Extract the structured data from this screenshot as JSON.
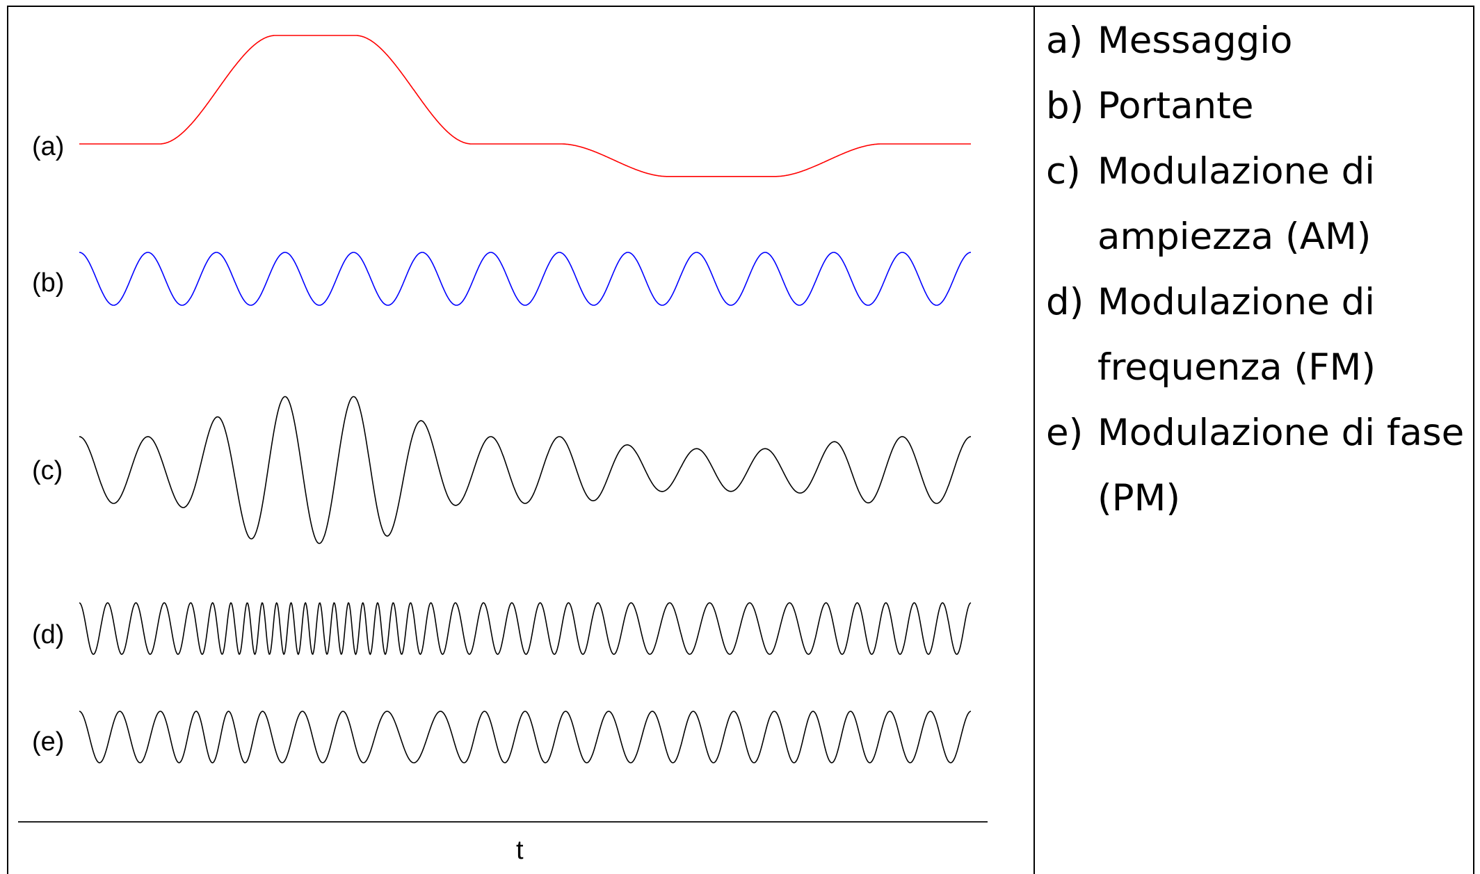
{
  "signal_labels": [
    "(a)",
    "(b)",
    "(c)",
    "(d)",
    "(e)"
  ],
  "axis_label": "t",
  "legend": [
    {
      "letter": "a)",
      "text": "Messaggio"
    },
    {
      "letter": "b)",
      "text": "Portante"
    },
    {
      "letter": "c)",
      "text": "Modulazione di ampiezza (AM)"
    },
    {
      "letter": "d)",
      "text": "Modulazione di frequenza (FM)"
    },
    {
      "letter": "e)",
      "text": "Modulazione di fase (PM)"
    }
  ],
  "colors": {
    "message": "#ff0000",
    "carrier": "#0000ff",
    "modulated": "#000000"
  },
  "chart_data": {
    "type": "line",
    "x_range": [
      0,
      1
    ],
    "carrier_cycles": 13,
    "message": {
      "points": [
        [
          0,
          0
        ],
        [
          0.09,
          0
        ],
        [
          0.22,
          1
        ],
        [
          0.31,
          1
        ],
        [
          0.44,
          0
        ],
        [
          0.54,
          0
        ],
        [
          0.66,
          -0.3
        ],
        [
          0.78,
          -0.3
        ],
        [
          0.9,
          0
        ],
        [
          1,
          0
        ]
      ]
    },
    "am_index": 1.2,
    "fm_carrier_cycles": 36,
    "fm_deviation": 0.85,
    "pm_phase_sensitivity": 3.1
  }
}
